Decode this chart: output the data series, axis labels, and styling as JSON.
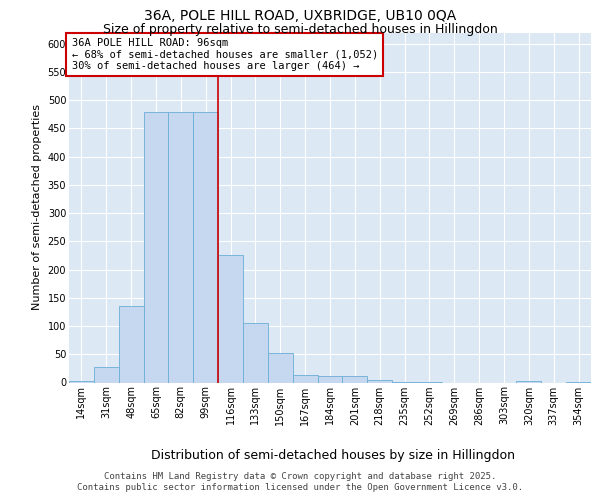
{
  "title1": "36A, POLE HILL ROAD, UXBRIDGE, UB10 0QA",
  "title2": "Size of property relative to semi-detached houses in Hillingdon",
  "xlabel": "Distribution of semi-detached houses by size in Hillingdon",
  "ylabel": "Number of semi-detached properties",
  "categories": [
    "14sqm",
    "31sqm",
    "48sqm",
    "65sqm",
    "82sqm",
    "99sqm",
    "116sqm",
    "133sqm",
    "150sqm",
    "167sqm",
    "184sqm",
    "201sqm",
    "218sqm",
    "235sqm",
    "252sqm",
    "269sqm",
    "286sqm",
    "303sqm",
    "320sqm",
    "337sqm",
    "354sqm"
  ],
  "values": [
    3,
    27,
    135,
    480,
    480,
    480,
    225,
    105,
    52,
    14,
    12,
    11,
    4,
    1,
    1,
    0,
    0,
    0,
    3,
    0,
    1
  ],
  "bar_color": "#c5d8f0",
  "bar_edgecolor": "#6baed6",
  "vline_x": 5.5,
  "vline_color": "#cc0000",
  "annotation_text": "36A POLE HILL ROAD: 96sqm\n← 68% of semi-detached houses are smaller (1,052)\n30% of semi-detached houses are larger (464) →",
  "annotation_bbox_edgecolor": "#cc0000",
  "annotation_bbox_facecolor": "#ffffff",
  "ylim": [
    0,
    620
  ],
  "yticks": [
    0,
    50,
    100,
    150,
    200,
    250,
    300,
    350,
    400,
    450,
    500,
    550,
    600
  ],
  "background_color": "#dce9f5",
  "footer_text": "Contains HM Land Registry data © Crown copyright and database right 2025.\nContains public sector information licensed under the Open Government Licence v3.0.",
  "title1_fontsize": 10,
  "title2_fontsize": 9,
  "xlabel_fontsize": 9,
  "ylabel_fontsize": 8,
  "annotation_fontsize": 7.5,
  "tick_fontsize": 7,
  "footer_fontsize": 6.5
}
